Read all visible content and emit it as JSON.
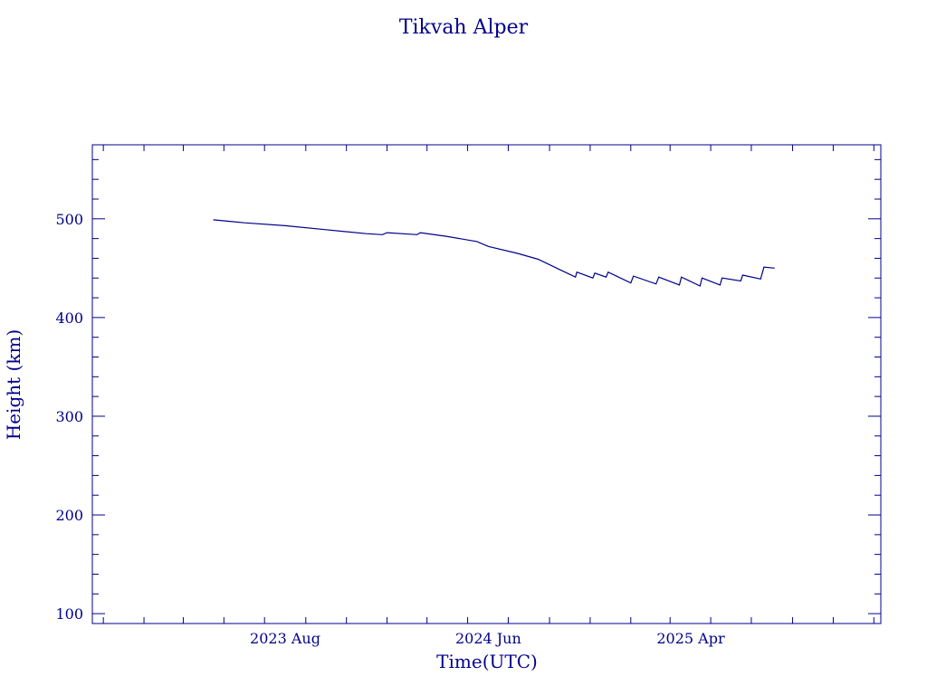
{
  "chart_data": {
    "type": "line",
    "title": "Tikvah Alper",
    "xlabel": "Time(UTC)",
    "ylabel": "Height (km)",
    "ylim": [
      90,
      575
    ],
    "y_ticks": [
      100,
      200,
      300,
      400,
      500
    ],
    "x_ticks": [
      "2023 Aug",
      "2024 Jun",
      "2025 Apr"
    ],
    "grid": false,
    "series": [
      {
        "x": [
          "2023-04-15",
          "2023-06-01",
          "2023-08-01",
          "2023-10-01",
          "2023-12-01",
          "2023-12-25",
          "2024-01-01",
          "2024-02-15",
          "2024-02-20",
          "2024-04-01",
          "2024-05-15",
          "2024-06-01",
          "2024-07-15",
          "2024-08-15",
          "2024-09-15",
          "2024-10-10",
          "2024-10-12",
          "2024-11-05",
          "2024-11-08",
          "2024-11-25",
          "2024-11-28",
          "2025-01-01",
          "2025-01-05",
          "2025-02-08",
          "2025-02-12",
          "2025-03-15",
          "2025-03-18",
          "2025-04-15",
          "2025-04-18",
          "2025-05-15",
          "2025-05-18",
          "2025-06-15",
          "2025-06-18",
          "2025-07-15",
          "2025-07-20",
          "2025-08-05"
        ],
        "y": [
          499,
          496,
          493,
          489,
          485,
          484,
          486,
          484,
          486,
          482,
          477,
          472,
          465,
          459,
          449,
          441,
          446,
          440,
          445,
          441,
          446,
          435,
          442,
          434,
          441,
          433,
          441,
          432,
          440,
          433,
          440,
          437,
          443,
          439,
          451,
          450
        ]
      }
    ]
  }
}
